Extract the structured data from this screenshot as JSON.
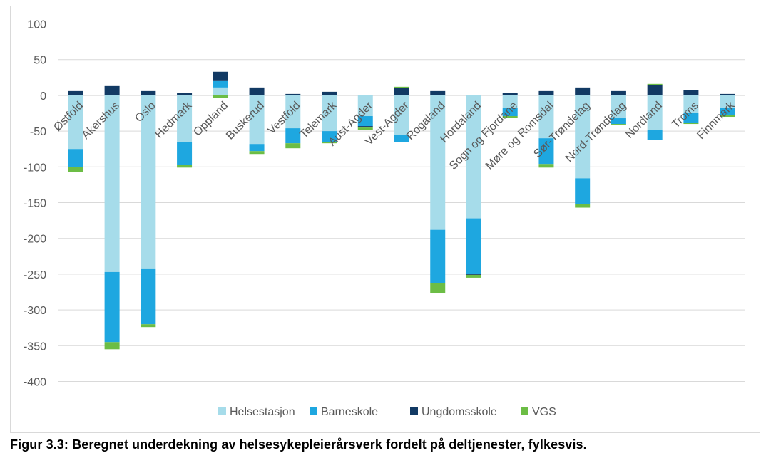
{
  "figure": {
    "caption": "Figur 3.3: Beregnet underdekning av helsesykepleierårsverk fordelt på deltjenester, fylkesvis."
  },
  "chart_data": {
    "type": "bar",
    "stacked": true,
    "categories": [
      "Østfold",
      "Akershus",
      "Oslo",
      "Hedmark",
      "Oppland",
      "Buskerud",
      "Vestfold",
      "Telemark",
      "Aust-Agder",
      "Vest-Agder",
      "Rogaland",
      "Hordaland",
      "Sogn og Fjordane",
      "Møre og Romsdal",
      "Sør-Trøndelag",
      "Nord-Trøndelag",
      "Nordland",
      "Troms",
      "Finnmark"
    ],
    "series": [
      {
        "name": "Helsestasjon",
        "color": "#a6dcea",
        "values": [
          -75,
          -247,
          -242,
          -65,
          11,
          -68,
          -46,
          -50,
          -29,
          -55,
          -188,
          -172,
          -17,
          -60,
          -116,
          -32,
          -48,
          -24,
          -18
        ]
      },
      {
        "name": "Barneskole",
        "color": "#1ea7e0",
        "values": [
          -25,
          -98,
          -78,
          -32,
          9,
          -10,
          -21,
          -15,
          -14,
          -10,
          -75,
          -78,
          -12,
          -36,
          -36,
          -8,
          -14,
          -14,
          -10
        ]
      },
      {
        "name": "Ungdomsskole",
        "color": "#123a64",
        "values": [
          6,
          13,
          6,
          3,
          13,
          11,
          2,
          5,
          -2,
          10,
          6,
          -1,
          3,
          6,
          11,
          6,
          14,
          7,
          2
        ]
      },
      {
        "name": "VGS",
        "color": "#6cbd45",
        "values": [
          -7,
          -10,
          -4,
          -4,
          -4,
          -4,
          -7,
          -2,
          -3,
          2,
          -14,
          -4,
          -2,
          -5,
          -5,
          -1,
          2,
          -2,
          -2
        ]
      }
    ],
    "ylim": [
      -400,
      100
    ],
    "yticks": [
      100,
      50,
      0,
      -50,
      -100,
      -150,
      -200,
      -250,
      -300,
      -350,
      -400
    ],
    "grid": true,
    "legend_position": "bottom",
    "xlabel": "",
    "ylabel": ""
  }
}
